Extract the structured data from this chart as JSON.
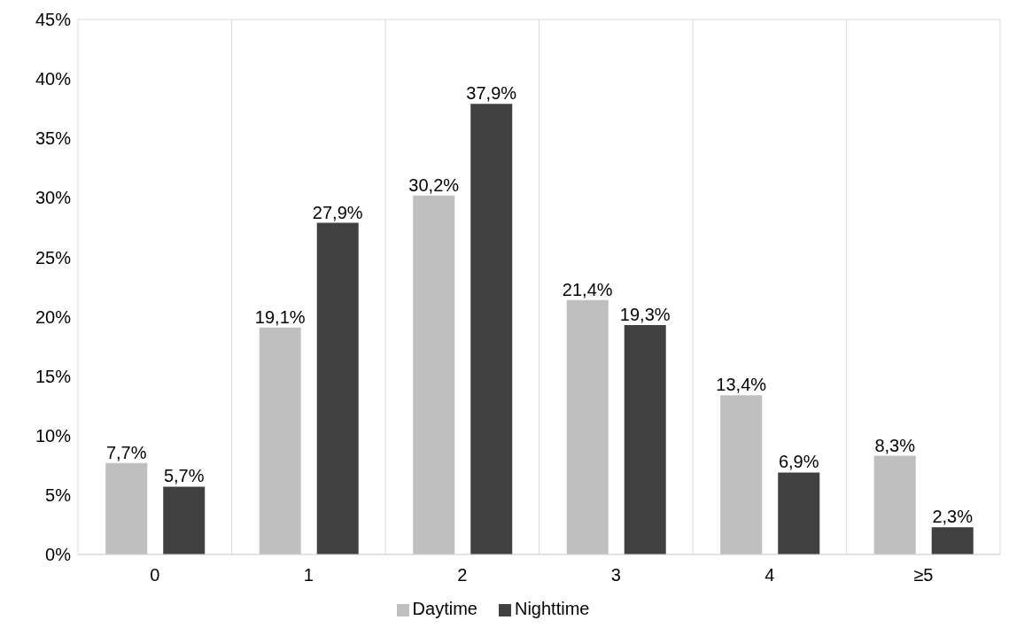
{
  "chart_data": {
    "type": "bar",
    "categories": [
      "0",
      "1",
      "2",
      "3",
      "4",
      "≥5"
    ],
    "series": [
      {
        "name": "Daytime",
        "color": "#bfbfbf",
        "values": [
          7.7,
          19.1,
          30.2,
          21.4,
          13.4,
          8.3
        ],
        "value_labels": [
          "7,7%",
          "19,1%",
          "30,2%",
          "21,4%",
          "13,4%",
          "8,3%"
        ]
      },
      {
        "name": "Nighttime",
        "color": "#404040",
        "values": [
          5.7,
          27.9,
          37.9,
          19.3,
          6.9,
          2.3
        ],
        "value_labels": [
          "5,7%",
          "27,9%",
          "37,9%",
          "19,3%",
          "6,9%",
          "2,3%"
        ]
      }
    ],
    "ylim": [
      0,
      45
    ],
    "yticks": [
      {
        "value": 0,
        "label": "0%"
      },
      {
        "value": 5,
        "label": "5%"
      },
      {
        "value": 10,
        "label": "10%"
      },
      {
        "value": 15,
        "label": "15%"
      },
      {
        "value": 20,
        "label": "20%"
      },
      {
        "value": 25,
        "label": "25%"
      },
      {
        "value": 30,
        "label": "30%"
      },
      {
        "value": 35,
        "label": "35%"
      },
      {
        "value": 40,
        "label": "40%"
      },
      {
        "value": 45,
        "label": "45%"
      }
    ],
    "grid": true,
    "legend": "bottom"
  }
}
